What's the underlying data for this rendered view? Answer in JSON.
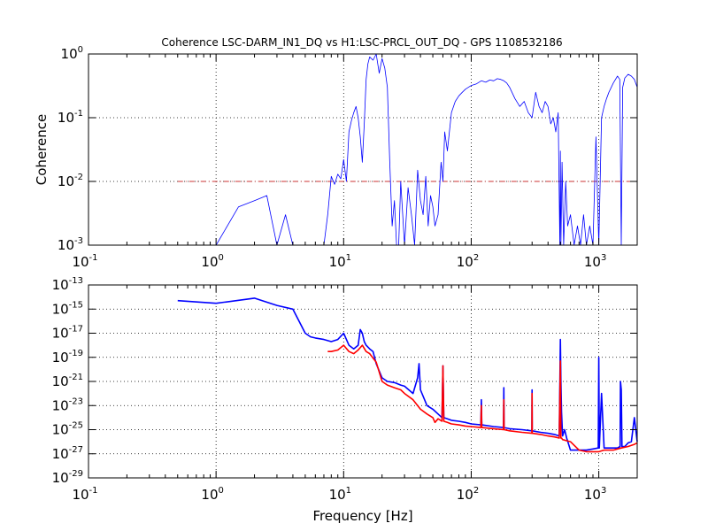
{
  "figure": {
    "title": "Coherence LSC-DARM_IN1_DQ vs H1:LSC-PRCL_OUT_DQ - GPS 1108532186",
    "colors": {
      "blue": "#0000ff",
      "red": "#ff0000",
      "threshold": "#cc3333",
      "grid": "#000000"
    }
  },
  "chart_data": [
    {
      "type": "line",
      "name": "coherence",
      "title": "Coherence LSC-DARM_IN1_DQ vs H1:LSC-PRCL_OUT_DQ - GPS 1108532186",
      "xlabel": "",
      "ylabel": "Coherence",
      "xscale": "log",
      "yscale": "log",
      "xlim": [
        0.1,
        2000
      ],
      "ylim": [
        0.001,
        1
      ],
      "grid": true,
      "xticks": [
        {
          "value": 0.1,
          "base": "10",
          "exp": "-1"
        },
        {
          "value": 1,
          "base": "10",
          "exp": "0"
        },
        {
          "value": 10,
          "base": "10",
          "exp": "1"
        },
        {
          "value": 100,
          "base": "10",
          "exp": "2"
        },
        {
          "value": 1000,
          "base": "10",
          "exp": "3"
        }
      ],
      "yticks": [
        {
          "value": 0.001,
          "base": "10",
          "exp": "-3"
        },
        {
          "value": 0.01,
          "base": "10",
          "exp": "-2"
        },
        {
          "value": 0.1,
          "base": "10",
          "exp": "-1"
        },
        {
          "value": 1,
          "base": "10",
          "exp": "0"
        }
      ],
      "threshold": {
        "y": 0.01,
        "x_start": 0.5,
        "x_end": 2000,
        "style": "dashdot"
      },
      "series": [
        {
          "color": "#0000ff",
          "x": [
            1.0,
            1.5,
            2.0,
            2.5,
            3.0,
            3.5,
            4.0,
            5.0,
            6.0,
            7.0,
            7.5,
            8.0,
            8.5,
            9.0,
            9.5,
            10.0,
            10.5,
            11.0,
            11.5,
            12.0,
            12.5,
            13.0,
            13.5,
            14.0,
            14.5,
            15.0,
            15.5,
            16.0,
            17.0,
            18.0,
            19.0,
            20.0,
            21.0,
            22.0,
            23.0,
            24.0,
            25.0,
            26.0,
            27.0,
            28.0,
            30.0,
            32.0,
            34.0,
            36.0,
            38.0,
            40.0,
            42.0,
            44.0,
            46.0,
            48.0,
            50.0,
            52.0,
            55.0,
            58.0,
            60.0,
            62.0,
            65.0,
            70.0,
            75.0,
            80.0,
            85.0,
            90.0,
            100.0,
            110.0,
            120.0,
            130.0,
            140.0,
            150.0,
            160.0,
            170.0,
            180.0,
            190.0,
            200.0,
            220.0,
            240.0,
            260.0,
            280.0,
            300.0,
            320.0,
            340.0,
            360.0,
            380.0,
            400.0,
            420.0,
            440.0,
            460.0,
            480.0,
            495.0,
            500.0,
            505.0,
            515.0,
            530.0,
            550.0,
            570.0,
            600.0,
            640.0,
            680.0,
            720.0,
            760.0,
            800.0,
            850.0,
            900.0,
            950.0,
            1000.0,
            1050.0,
            1100.0,
            1150.0,
            1200.0,
            1300.0,
            1400.0,
            1460.0,
            1500.0,
            1540.0,
            1600.0,
            1700.0,
            1800.0,
            1900.0,
            2000.0
          ],
          "y": [
            0.001,
            0.004,
            0.005,
            0.006,
            0.001,
            0.003,
            0.001,
            0.001,
            0.001,
            0.001,
            0.003,
            0.012,
            0.009,
            0.013,
            0.011,
            0.022,
            0.01,
            0.06,
            0.09,
            0.12,
            0.15,
            0.1,
            0.05,
            0.02,
            0.08,
            0.4,
            0.7,
            0.9,
            0.8,
            1.0,
            0.5,
            0.85,
            0.6,
            0.3,
            0.02,
            0.002,
            0.005,
            0.001,
            0.001,
            0.01,
            0.001,
            0.008,
            0.003,
            0.001,
            0.015,
            0.005,
            0.003,
            0.012,
            0.002,
            0.006,
            0.004,
            0.002,
            0.003,
            0.02,
            0.01,
            0.06,
            0.03,
            0.12,
            0.18,
            0.22,
            0.25,
            0.28,
            0.32,
            0.34,
            0.38,
            0.36,
            0.39,
            0.38,
            0.41,
            0.4,
            0.38,
            0.35,
            0.3,
            0.2,
            0.15,
            0.18,
            0.12,
            0.1,
            0.25,
            0.15,
            0.12,
            0.18,
            0.15,
            0.08,
            0.1,
            0.06,
            0.12,
            0.001,
            0.03,
            0.001,
            0.02,
            0.001,
            0.01,
            0.002,
            0.003,
            0.001,
            0.002,
            0.001,
            0.003,
            0.001,
            0.002,
            0.001,
            0.05,
            0.001,
            0.1,
            0.15,
            0.2,
            0.25,
            0.35,
            0.45,
            0.4,
            0.001,
            0.3,
            0.42,
            0.48,
            0.45,
            0.4,
            0.3
          ]
        }
      ]
    },
    {
      "type": "line",
      "name": "spectra",
      "title": "",
      "xlabel": "Frequency [Hz]",
      "ylabel": "",
      "xscale": "log",
      "yscale": "log",
      "xlim": [
        0.1,
        2000
      ],
      "ylim": [
        1e-29,
        1e-13
      ],
      "grid": true,
      "xticks": [
        {
          "value": 0.1,
          "base": "10",
          "exp": "-1"
        },
        {
          "value": 1,
          "base": "10",
          "exp": "0"
        },
        {
          "value": 10,
          "base": "10",
          "exp": "1"
        },
        {
          "value": 100,
          "base": "10",
          "exp": "2"
        },
        {
          "value": 1000,
          "base": "10",
          "exp": "3"
        }
      ],
      "yticks": [
        {
          "value": 1e-29,
          "base": "10",
          "exp": "-29"
        },
        {
          "value": 1e-27,
          "base": "10",
          "exp": "-27"
        },
        {
          "value": 1e-25,
          "base": "10",
          "exp": "-25"
        },
        {
          "value": 1e-23,
          "base": "10",
          "exp": "-23"
        },
        {
          "value": 1e-21,
          "base": "10",
          "exp": "-21"
        },
        {
          "value": 1e-19,
          "base": "10",
          "exp": "-19"
        },
        {
          "value": 1e-17,
          "base": "10",
          "exp": "-17"
        },
        {
          "value": 1e-15,
          "base": "10",
          "exp": "-15"
        },
        {
          "value": 1e-13,
          "base": "10",
          "exp": "-13"
        }
      ],
      "series": [
        {
          "color": "#0000ff",
          "x": [
            0.5,
            1.0,
            2.0,
            3.0,
            4.0,
            5.0,
            5.5,
            6.0,
            7.0,
            8.0,
            9.0,
            10.0,
            11.0,
            12.0,
            13.0,
            13.5,
            14.0,
            14.5,
            15.0,
            16.0,
            17.0,
            18.0,
            20.0,
            22.0,
            25.0,
            28.0,
            30.0,
            35.0,
            38.0,
            39.0,
            40.0,
            45.0,
            50.0,
            55.0,
            59.0,
            60.0,
            61.0,
            65.0,
            70.0,
            80.0,
            90.0,
            100.0,
            119.0,
            120.0,
            121.0,
            150.0,
            179.0,
            180.0,
            181.0,
            200.0,
            250.0,
            299.0,
            300.0,
            301.0,
            350.0,
            400.0,
            450.0,
            490.0,
            500.0,
            505.0,
            510.0,
            520.0,
            540.0,
            560.0,
            600.0,
            700.0,
            800.0,
            900.0,
            990.0,
            1000.0,
            1010.0,
            1050.0,
            1100.0,
            1200.0,
            1300.0,
            1400.0,
            1470.0,
            1480.0,
            1500.0,
            1520.0,
            1600.0,
            1700.0,
            1800.0,
            1900.0,
            2000.0
          ],
          "y": [
            5e-15,
            3e-15,
            8e-15,
            2e-15,
            1e-15,
            1e-17,
            5e-18,
            4e-18,
            3e-18,
            2e-18,
            3e-18,
            1e-17,
            1e-18,
            5e-19,
            1e-18,
            2e-17,
            1e-17,
            2e-18,
            1e-18,
            5e-19,
            3e-19,
            3e-20,
            2e-21,
            1e-21,
            8e-22,
            5e-22,
            4e-22,
            1e-22,
            2e-21,
            3e-20,
            2e-22,
            1e-23,
            5e-24,
            2e-24,
            1e-24,
            2e-20,
            1e-24,
            8e-25,
            6e-25,
            5e-25,
            4e-25,
            3e-25,
            2.5e-25,
            3e-23,
            2.5e-25,
            1.8e-25,
            1.5e-25,
            3e-22,
            1.5e-25,
            1.2e-25,
            1e-25,
            8e-26,
            2e-22,
            8e-26,
            6e-26,
            5e-26,
            4e-26,
            3e-26,
            3e-18,
            1e-21,
            3e-24,
            3e-26,
            1e-25,
            2e-26,
            2e-27,
            2e-27,
            2e-27,
            2.5e-27,
            3e-27,
            1e-19,
            3e-27,
            1e-22,
            3e-27,
            3e-27,
            3e-27,
            3e-27,
            4e-27,
            1e-21,
            2e-22,
            4e-27,
            4e-27,
            8e-27,
            1e-26,
            1e-24,
            1e-26
          ]
        },
        {
          "color": "#ff0000",
          "x": [
            7.5,
            8.0,
            9.0,
            10.0,
            11.0,
            12.0,
            13.0,
            14.0,
            15.0,
            16.0,
            18.0,
            20.0,
            22.0,
            25.0,
            28.0,
            30.0,
            35.0,
            40.0,
            45.0,
            50.0,
            52.0,
            55.0,
            59.0,
            60.0,
            61.0,
            65.0,
            70.0,
            80.0,
            90.0,
            100.0,
            119.0,
            120.0,
            121.0,
            150.0,
            179.0,
            180.0,
            181.0,
            200.0,
            250.0,
            299.0,
            300.0,
            301.0,
            350.0,
            400.0,
            450.0,
            490.0,
            500.0,
            505.0,
            510.0,
            520.0,
            560.0,
            600.0,
            700.0,
            800.0,
            900.0,
            1000.0,
            1100.0,
            1200.0,
            1300.0,
            1400.0,
            1500.0,
            1600.0,
            1700.0,
            1800.0,
            1900.0,
            2000.0
          ],
          "y": [
            3e-19,
            3e-19,
            4e-19,
            1e-18,
            3e-19,
            2e-19,
            4e-19,
            1e-18,
            3e-19,
            2e-19,
            4e-20,
            1e-21,
            5e-22,
            3e-22,
            2e-22,
            1e-22,
            3e-23,
            5e-24,
            2e-24,
            1e-24,
            4e-25,
            8e-25,
            5e-25,
            2e-20,
            5e-25,
            4e-25,
            3e-25,
            2.5e-25,
            2e-25,
            1.8e-25,
            1.5e-25,
            1e-23,
            1.5e-25,
            1.2e-25,
            1e-25,
            3e-23,
            1e-25,
            8e-26,
            6e-26,
            5e-26,
            1e-22,
            5e-26,
            4e-26,
            3e-26,
            2.5e-26,
            2e-26,
            5e-20,
            2e-26,
            2e-26,
            1.5e-26,
            1.2e-26,
            1e-26,
            2e-27,
            1.5e-27,
            1.5e-27,
            1.5e-27,
            2e-27,
            2e-27,
            2e-27,
            2.5e-27,
            3e-27,
            3.5e-27,
            4e-27,
            5e-27,
            6e-27,
            8e-27
          ]
        }
      ]
    }
  ]
}
